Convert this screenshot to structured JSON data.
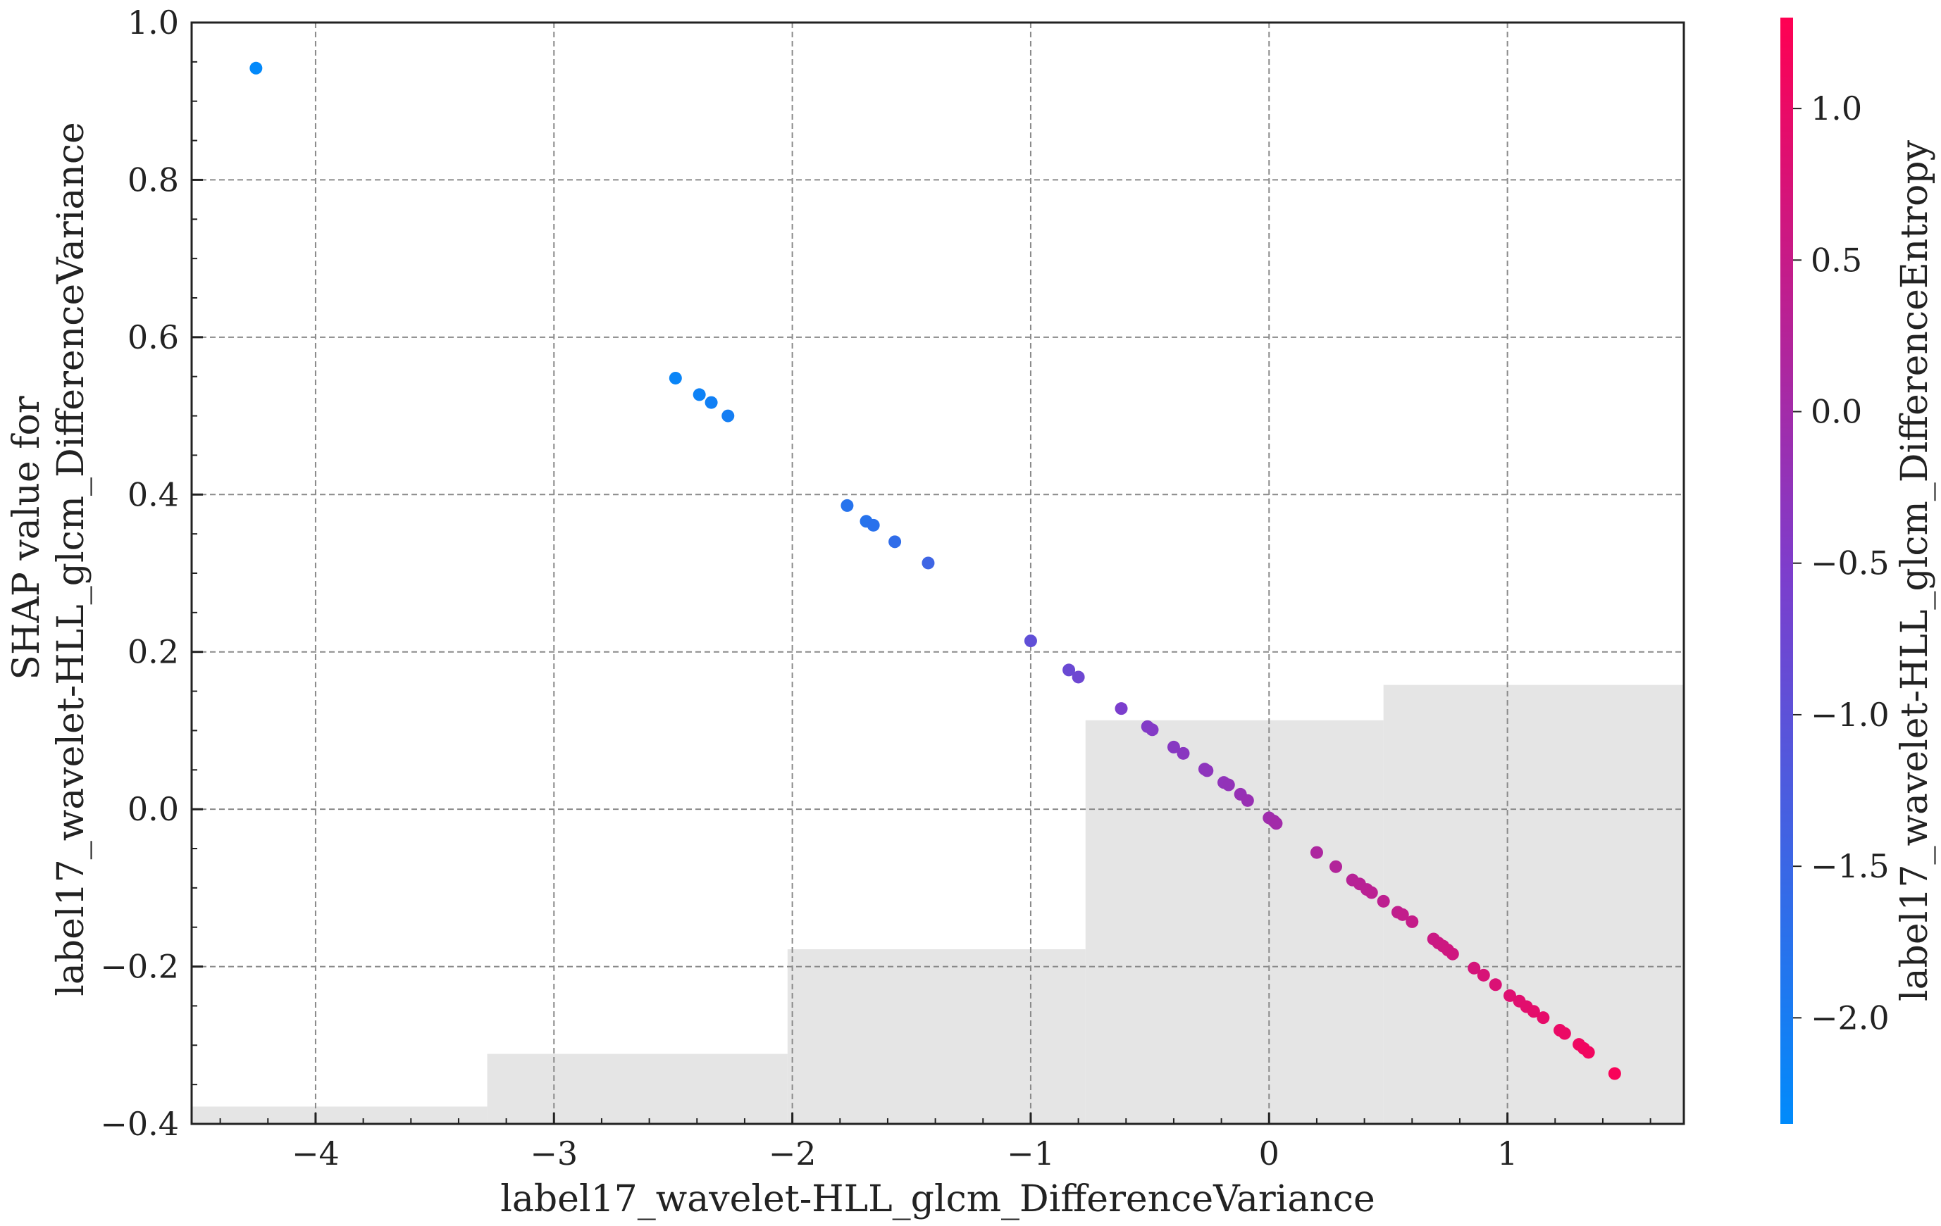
{
  "chart_data": {
    "type": "scatter",
    "xlabel": "label17_wavelet-HLL_glcm_DifferenceVariance",
    "ylabel_lines": [
      "SHAP value for",
      "label17_wavelet-HLL_glcm_DifferenceVariance"
    ],
    "colorbar_label": "label17_wavelet-HLL_glcm_DifferenceEntropy",
    "xlim": [
      -4.52,
      1.74
    ],
    "ylim": [
      -0.4,
      1.0
    ],
    "x_ticks": [
      -4,
      -3,
      -2,
      -1,
      0,
      1
    ],
    "x_tick_labels": [
      "−4",
      "−3",
      "−2",
      "−1",
      "0",
      "1"
    ],
    "y_ticks": [
      -0.4,
      -0.2,
      0.0,
      0.2,
      0.4,
      0.6,
      0.8,
      1.0
    ],
    "y_tick_labels": [
      "−0.4",
      "−0.2",
      "0.0",
      "0.2",
      "0.4",
      "0.6",
      "0.8",
      "1.0"
    ],
    "grid": true,
    "colorbar": {
      "range": [
        -2.35,
        1.3
      ],
      "ticks": [
        -2.0,
        -1.5,
        -1.0,
        -0.5,
        0.0,
        0.5,
        1.0
      ],
      "tick_labels": [
        "−2.0",
        "−1.5",
        "−1.0",
        "−0.5",
        "0.0",
        "0.5",
        "1.0"
      ],
      "colors": [
        "#008bfb",
        "#ff0052"
      ]
    },
    "histogram": {
      "color": "#e5e5e5",
      "bins": [
        {
          "x0": -4.52,
          "x1": -3.28,
          "top": -0.378
        },
        {
          "x0": -3.28,
          "x1": -2.02,
          "top": -0.311
        },
        {
          "x0": -2.02,
          "x1": -0.77,
          "top": -0.178
        },
        {
          "x0": -0.77,
          "x1": 0.48,
          "top": 0.113
        },
        {
          "x0": 0.48,
          "x1": 1.74,
          "top": 0.158
        }
      ]
    },
    "points": [
      {
        "x": -4.25,
        "y": 0.942,
        "c": -2.3
      },
      {
        "x": -2.49,
        "y": 0.548,
        "c": -2.2
      },
      {
        "x": -2.39,
        "y": 0.527,
        "c": -2.15
      },
      {
        "x": -2.34,
        "y": 0.517,
        "c": -2.1
      },
      {
        "x": -2.27,
        "y": 0.5,
        "c": -2.05
      },
      {
        "x": -1.77,
        "y": 0.386,
        "c": -1.8
      },
      {
        "x": -1.69,
        "y": 0.366,
        "c": -1.78
      },
      {
        "x": -1.66,
        "y": 0.361,
        "c": -1.75
      },
      {
        "x": -1.57,
        "y": 0.34,
        "c": -1.65
      },
      {
        "x": -1.43,
        "y": 0.313,
        "c": -1.45
      },
      {
        "x": -1.0,
        "y": 0.214,
        "c": -0.95
      },
      {
        "x": -0.84,
        "y": 0.177,
        "c": -0.8
      },
      {
        "x": -0.8,
        "y": 0.168,
        "c": -0.75
      },
      {
        "x": -0.62,
        "y": 0.128,
        "c": -0.55
      },
      {
        "x": -0.51,
        "y": 0.105,
        "c": -0.45
      },
      {
        "x": -0.49,
        "y": 0.101,
        "c": -0.43
      },
      {
        "x": -0.4,
        "y": 0.079,
        "c": -0.38
      },
      {
        "x": -0.36,
        "y": 0.071,
        "c": -0.35
      },
      {
        "x": -0.27,
        "y": 0.051,
        "c": -0.3
      },
      {
        "x": -0.26,
        "y": 0.049,
        "c": -0.28
      },
      {
        "x": -0.19,
        "y": 0.034,
        "c": -0.25
      },
      {
        "x": -0.17,
        "y": 0.031,
        "c": -0.23
      },
      {
        "x": -0.12,
        "y": 0.019,
        "c": -0.18
      },
      {
        "x": -0.09,
        "y": 0.011,
        "c": -0.15
      },
      {
        "x": 0.0,
        "y": -0.011,
        "c": -0.05
      },
      {
        "x": 0.02,
        "y": -0.015,
        "c": -0.02
      },
      {
        "x": 0.03,
        "y": -0.018,
        "c": 0.0
      },
      {
        "x": 0.2,
        "y": -0.055,
        "c": 0.15
      },
      {
        "x": 0.28,
        "y": -0.073,
        "c": 0.22
      },
      {
        "x": 0.35,
        "y": -0.09,
        "c": 0.28
      },
      {
        "x": 0.38,
        "y": -0.095,
        "c": 0.3
      },
      {
        "x": 0.41,
        "y": -0.102,
        "c": 0.32
      },
      {
        "x": 0.43,
        "y": -0.106,
        "c": 0.34
      },
      {
        "x": 0.48,
        "y": -0.117,
        "c": 0.38
      },
      {
        "x": 0.54,
        "y": -0.131,
        "c": 0.42
      },
      {
        "x": 0.56,
        "y": -0.134,
        "c": 0.44
      },
      {
        "x": 0.6,
        "y": -0.143,
        "c": 0.47
      },
      {
        "x": 0.69,
        "y": -0.165,
        "c": 0.55
      },
      {
        "x": 0.71,
        "y": -0.17,
        "c": 0.57
      },
      {
        "x": 0.73,
        "y": -0.174,
        "c": 0.59
      },
      {
        "x": 0.75,
        "y": -0.179,
        "c": 0.61
      },
      {
        "x": 0.77,
        "y": -0.184,
        "c": 0.63
      },
      {
        "x": 0.86,
        "y": -0.202,
        "c": 0.7
      },
      {
        "x": 0.9,
        "y": -0.211,
        "c": 0.74
      },
      {
        "x": 0.95,
        "y": -0.223,
        "c": 0.78
      },
      {
        "x": 1.01,
        "y": -0.237,
        "c": 0.83
      },
      {
        "x": 1.05,
        "y": -0.244,
        "c": 0.86
      },
      {
        "x": 1.08,
        "y": -0.251,
        "c": 0.89
      },
      {
        "x": 1.11,
        "y": -0.257,
        "c": 0.92
      },
      {
        "x": 1.15,
        "y": -0.265,
        "c": 0.95
      },
      {
        "x": 1.22,
        "y": -0.281,
        "c": 1.0
      },
      {
        "x": 1.24,
        "y": -0.285,
        "c": 1.02
      },
      {
        "x": 1.3,
        "y": -0.299,
        "c": 1.07
      },
      {
        "x": 1.32,
        "y": -0.304,
        "c": 1.09
      },
      {
        "x": 1.34,
        "y": -0.309,
        "c": 1.11
      },
      {
        "x": 1.45,
        "y": -0.336,
        "c": 1.2
      }
    ]
  }
}
